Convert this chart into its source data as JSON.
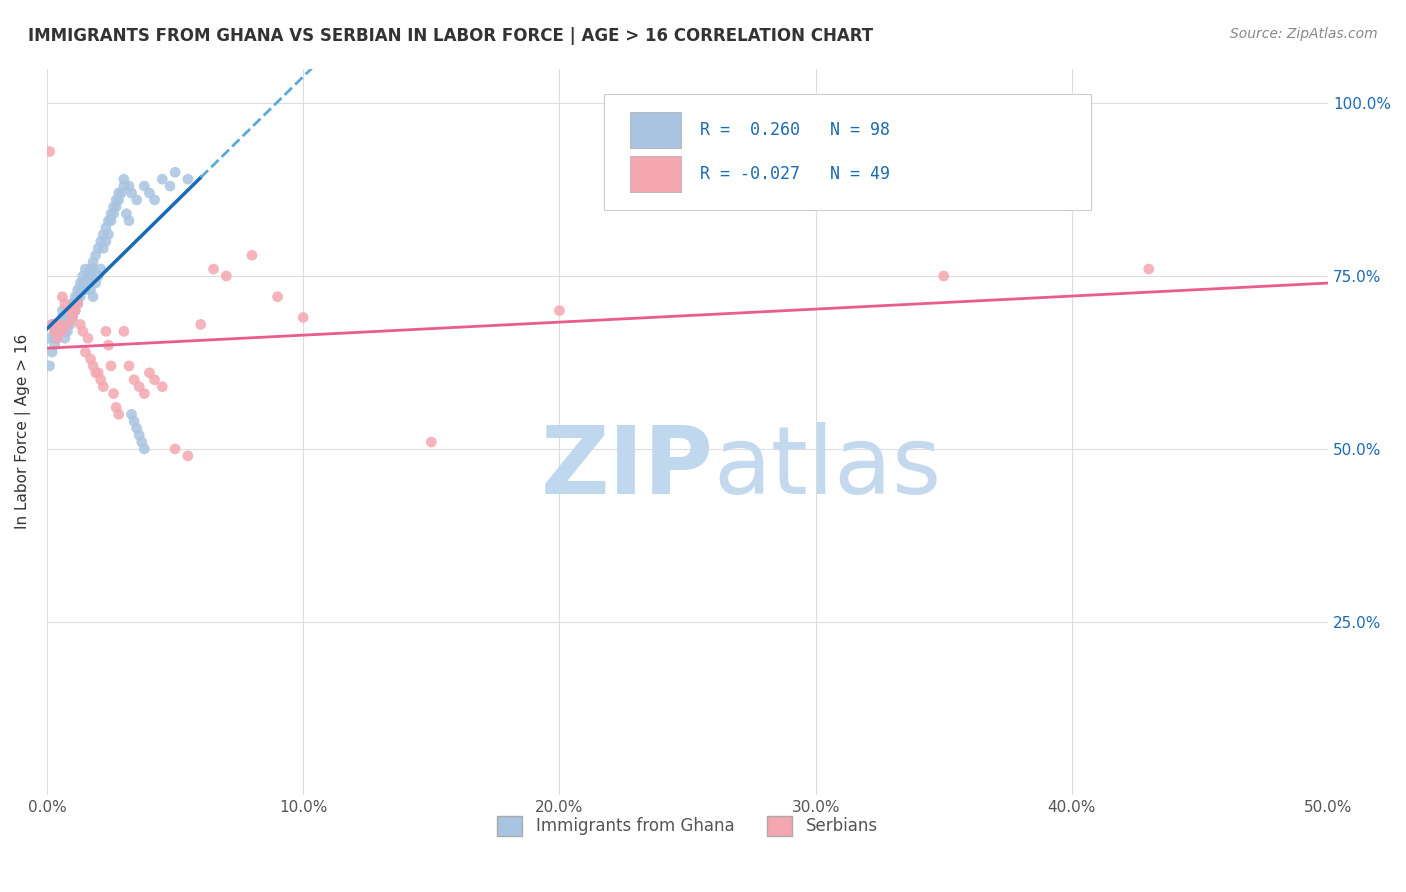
{
  "title": "IMMIGRANTS FROM GHANA VS SERBIAN IN LABOR FORCE | AGE > 16 CORRELATION CHART",
  "source": "Source: ZipAtlas.com",
  "xlabel": "",
  "ylabel": "In Labor Force | Age > 16",
  "xlim": [
    0.0,
    0.5
  ],
  "ylim": [
    0.0,
    1.05
  ],
  "ytick_labels": [
    "",
    "25.0%",
    "50.0%",
    "75.0%",
    "100.0%"
  ],
  "ytick_vals": [
    0.0,
    0.25,
    0.5,
    0.75,
    1.0
  ],
  "xtick_labels": [
    "0.0%",
    "10.0%",
    "20.0%",
    "30.0%",
    "40.0%",
    "50.0%"
  ],
  "xtick_vals": [
    0.0,
    0.1,
    0.2,
    0.3,
    0.4,
    0.5
  ],
  "legend_R1": "R =  0.260",
  "legend_N1": "N = 98",
  "legend_R2": "R = -0.027",
  "legend_N2": "N = 49",
  "color_ghana": "#a8c4e0",
  "color_serbian": "#f4a7b0",
  "trendline_ghana_color": "#1a6bb5",
  "trendline_serbian_color": "#e85d8a",
  "trendline_dashed_color": "#5aabdc",
  "watermark": "ZIPatlas",
  "ghana_x": [
    0.001,
    0.002,
    0.003,
    0.003,
    0.004,
    0.005,
    0.005,
    0.006,
    0.006,
    0.007,
    0.007,
    0.007,
    0.008,
    0.008,
    0.008,
    0.009,
    0.009,
    0.009,
    0.01,
    0.01,
    0.01,
    0.011,
    0.011,
    0.011,
    0.012,
    0.012,
    0.012,
    0.013,
    0.013,
    0.014,
    0.014,
    0.015,
    0.015,
    0.016,
    0.016,
    0.017,
    0.017,
    0.018,
    0.018,
    0.019,
    0.02,
    0.021,
    0.022,
    0.023,
    0.024,
    0.025,
    0.026,
    0.027,
    0.028,
    0.03,
    0.032,
    0.033,
    0.035,
    0.038,
    0.04,
    0.042,
    0.045,
    0.048,
    0.05,
    0.055,
    0.001,
    0.002,
    0.003,
    0.004,
    0.005,
    0.006,
    0.007,
    0.008,
    0.009,
    0.01,
    0.011,
    0.012,
    0.013,
    0.014,
    0.015,
    0.016,
    0.017,
    0.018,
    0.019,
    0.02,
    0.021,
    0.022,
    0.023,
    0.024,
    0.025,
    0.026,
    0.027,
    0.028,
    0.029,
    0.03,
    0.031,
    0.032,
    0.033,
    0.034,
    0.035,
    0.036,
    0.037,
    0.038
  ],
  "ghana_y": [
    0.66,
    0.68,
    0.66,
    0.67,
    0.68,
    0.67,
    0.68,
    0.68,
    0.69,
    0.67,
    0.68,
    0.69,
    0.69,
    0.7,
    0.69,
    0.68,
    0.69,
    0.7,
    0.7,
    0.71,
    0.69,
    0.71,
    0.7,
    0.71,
    0.72,
    0.71,
    0.72,
    0.72,
    0.73,
    0.73,
    0.74,
    0.73,
    0.74,
    0.74,
    0.75,
    0.76,
    0.75,
    0.76,
    0.77,
    0.78,
    0.79,
    0.8,
    0.81,
    0.82,
    0.83,
    0.84,
    0.85,
    0.86,
    0.87,
    0.89,
    0.88,
    0.87,
    0.86,
    0.88,
    0.87,
    0.86,
    0.89,
    0.88,
    0.9,
    0.89,
    0.62,
    0.64,
    0.65,
    0.66,
    0.68,
    0.7,
    0.66,
    0.67,
    0.69,
    0.71,
    0.72,
    0.73,
    0.74,
    0.75,
    0.76,
    0.74,
    0.73,
    0.72,
    0.74,
    0.75,
    0.76,
    0.79,
    0.8,
    0.81,
    0.83,
    0.84,
    0.85,
    0.86,
    0.87,
    0.88,
    0.84,
    0.83,
    0.55,
    0.54,
    0.53,
    0.52,
    0.51,
    0.5
  ],
  "serbian_x": [
    0.001,
    0.002,
    0.003,
    0.004,
    0.005,
    0.006,
    0.006,
    0.007,
    0.008,
    0.009,
    0.01,
    0.011,
    0.012,
    0.013,
    0.014,
    0.015,
    0.016,
    0.017,
    0.018,
    0.019,
    0.02,
    0.021,
    0.022,
    0.023,
    0.024,
    0.025,
    0.026,
    0.027,
    0.028,
    0.03,
    0.032,
    0.034,
    0.036,
    0.038,
    0.04,
    0.042,
    0.045,
    0.05,
    0.055,
    0.06,
    0.065,
    0.07,
    0.08,
    0.09,
    0.1,
    0.15,
    0.2,
    0.35,
    0.43
  ],
  "serbian_y": [
    0.93,
    0.68,
    0.67,
    0.66,
    0.68,
    0.67,
    0.72,
    0.71,
    0.68,
    0.7,
    0.69,
    0.7,
    0.71,
    0.68,
    0.67,
    0.64,
    0.66,
    0.63,
    0.62,
    0.61,
    0.61,
    0.6,
    0.59,
    0.67,
    0.65,
    0.62,
    0.58,
    0.56,
    0.55,
    0.67,
    0.62,
    0.6,
    0.59,
    0.58,
    0.61,
    0.6,
    0.59,
    0.5,
    0.49,
    0.68,
    0.76,
    0.75,
    0.78,
    0.72,
    0.69,
    0.51,
    0.7,
    0.75,
    0.76
  ],
  "background_color": "#ffffff",
  "grid_color": "#dddddd",
  "title_color": "#333333",
  "axis_label_color": "#333333",
  "right_axis_color": "#1a6bb5",
  "watermark_color_zip": "#c0d8ee",
  "watermark_color_atlas": "#c5d9ee"
}
